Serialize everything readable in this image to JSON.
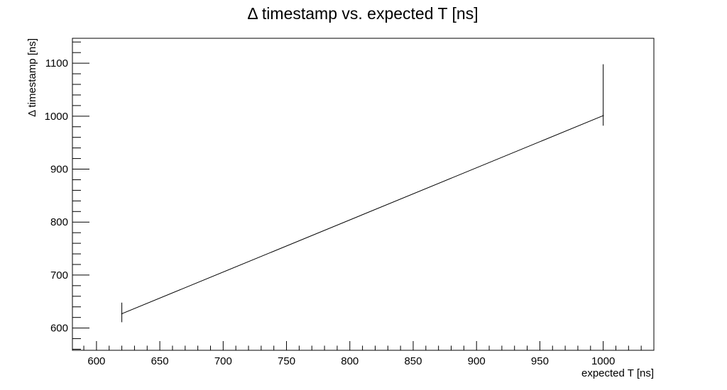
{
  "chart_data": {
    "type": "line",
    "title": "Δ timestamp vs. expected T [ns]",
    "xlabel": "expected T [ns]",
    "ylabel": "Δ timestamp [ns]",
    "xlim": [
      581,
      1040
    ],
    "ylim": [
      558,
      1147
    ],
    "grid": false,
    "x_ticks": [
      600,
      650,
      700,
      750,
      800,
      850,
      900,
      950,
      1000
    ],
    "x_tick_labels": [
      "600",
      "650",
      "700",
      "750",
      "800",
      "850",
      "900",
      "950",
      "1000"
    ],
    "y_ticks": [
      600,
      700,
      800,
      900,
      1000,
      1100
    ],
    "y_tick_labels": [
      "600",
      "700",
      "800",
      "900",
      "1000",
      "1100"
    ],
    "series": [
      {
        "color": "#000000",
        "points": [
          {
            "x": 620,
            "y": 627,
            "y_low": 611,
            "y_high": 648
          },
          {
            "x": 1000,
            "y": 1001,
            "y_low": 982,
            "y_high": 1098
          }
        ]
      }
    ]
  }
}
